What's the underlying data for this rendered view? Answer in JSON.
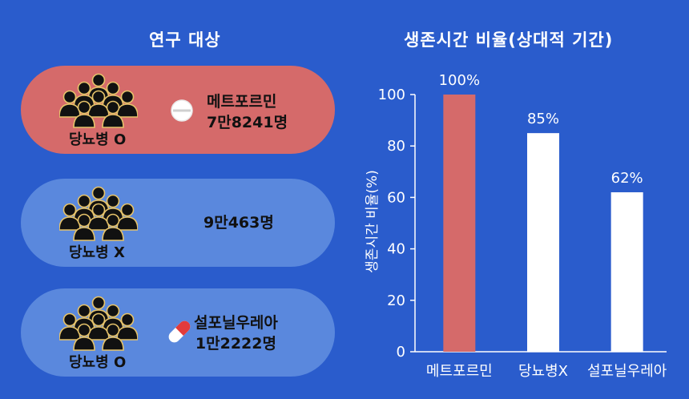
{
  "left_panel": {
    "title": "연구 대상",
    "groups": [
      {
        "label": "당뇨병 O",
        "line1": "메트포르민",
        "line2": "7만8241명",
        "drug_icon": "white-tablet-icon",
        "color": "#d56a6a"
      },
      {
        "label": "당뇨병 X",
        "line1": "9만463명",
        "line2": "",
        "drug_icon": "",
        "color": "#5a88dd"
      },
      {
        "label": "당뇨병 O",
        "line1": "설포닐우레아",
        "line2": "1만2222명",
        "drug_icon": "red-white-capsule-icon",
        "color": "#5a88dd"
      }
    ]
  },
  "chart_data": {
    "type": "bar",
    "title": "생존시간 비율(상대적 기간)",
    "ylabel": "생존시간 비율(%)",
    "xlabel": "",
    "categories": [
      "메트포르민",
      "당뇨병X",
      "설포닐우레아"
    ],
    "values": [
      100,
      85,
      62
    ],
    "data_labels": [
      "100%",
      "85%",
      "62%"
    ],
    "colors": [
      "#d56a6a",
      "#ffffff",
      "#ffffff"
    ],
    "yticks": [
      0,
      20,
      40,
      60,
      80,
      100
    ],
    "ylim": [
      0,
      100
    ],
    "grid": false
  }
}
